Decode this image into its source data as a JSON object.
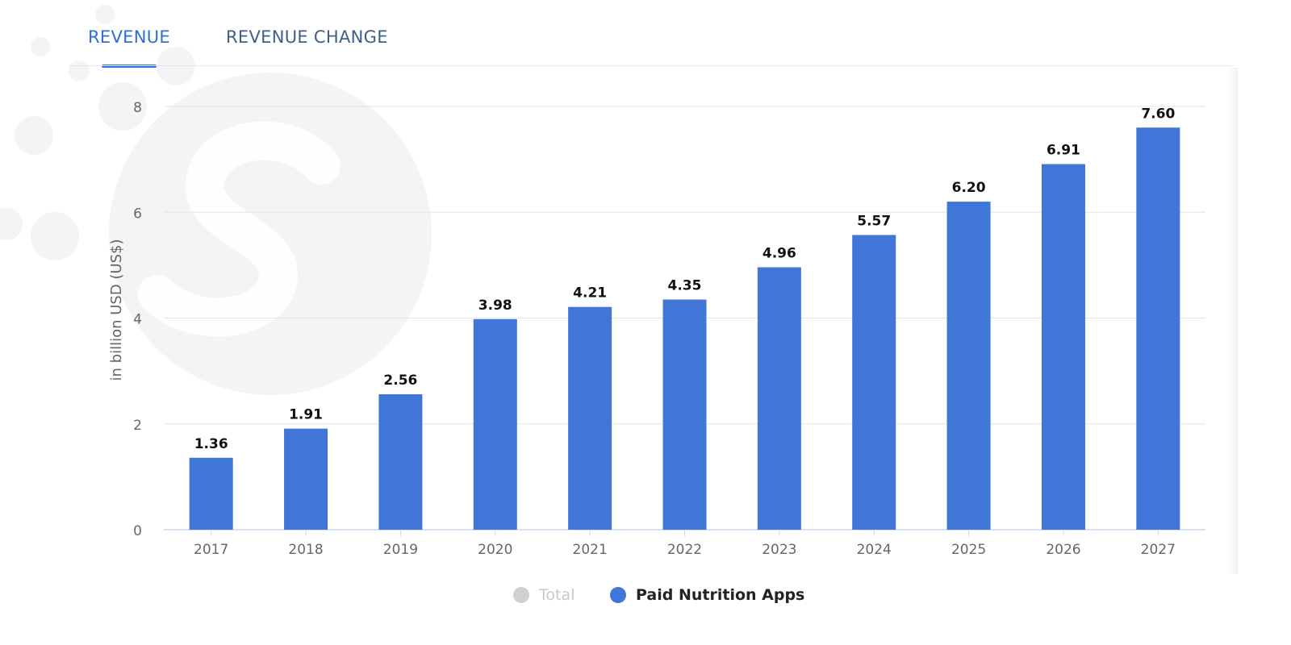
{
  "tabs": [
    {
      "label": "REVENUE",
      "active": true
    },
    {
      "label": "REVENUE CHANGE",
      "active": false
    }
  ],
  "colors": {
    "accent": "#2e6fd8",
    "bar": "#3f76d8",
    "inactive_legend": "#d0d0d0",
    "watermark": "#f4f4f6"
  },
  "watermark_icon": "statista-logo-watermark",
  "legend": [
    {
      "label": "Total",
      "color": "#d0d0d0",
      "active": false
    },
    {
      "label": "Paid Nutrition Apps",
      "color": "#3f76d8",
      "active": true
    }
  ],
  "chart_data": {
    "type": "bar",
    "categories": [
      "2017",
      "2018",
      "2019",
      "2020",
      "2021",
      "2022",
      "2023",
      "2024",
      "2025",
      "2026",
      "2027"
    ],
    "series": [
      {
        "name": "Paid Nutrition Apps",
        "values": [
          1.36,
          1.91,
          2.56,
          3.98,
          4.21,
          4.35,
          4.96,
          5.57,
          6.2,
          6.91,
          7.6
        ]
      }
    ],
    "data_labels": [
      "1.36",
      "1.91",
      "2.56",
      "3.98",
      "4.21",
      "4.35",
      "4.96",
      "5.57",
      "6.20",
      "6.91",
      "7.60"
    ],
    "ylabel": "in billion USD (US$)",
    "xlabel": "",
    "ylim": [
      0,
      8
    ],
    "yticks": [
      0,
      2,
      4,
      6,
      8
    ],
    "grid": true,
    "legend_position": "bottom-center"
  }
}
